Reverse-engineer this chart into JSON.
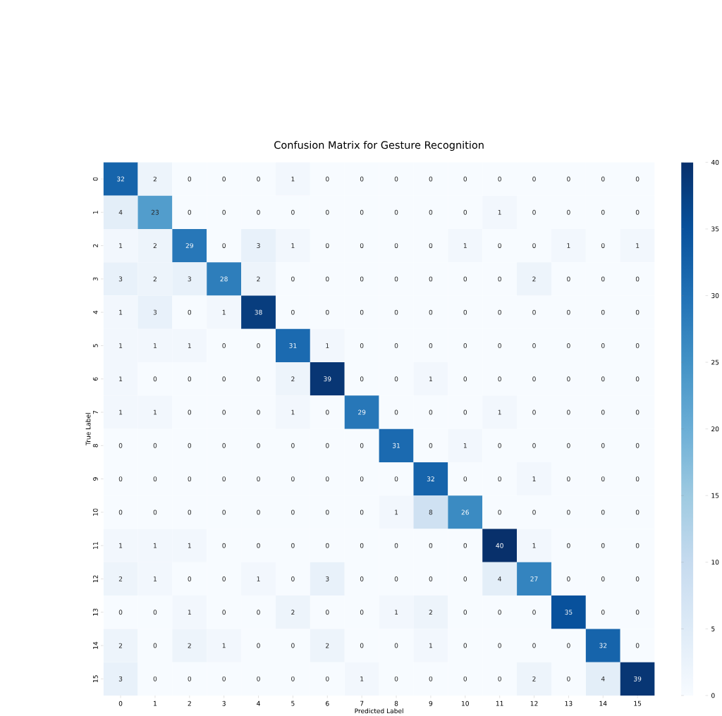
{
  "chart_data": {
    "type": "heatmap",
    "title": "Confusion Matrix for Gesture Recognition",
    "xlabel": "Predicted Label",
    "ylabel": "True Label",
    "categories": [
      "0",
      "1",
      "2",
      "3",
      "4",
      "5",
      "6",
      "7",
      "8",
      "9",
      "10",
      "11",
      "12",
      "13",
      "14",
      "15"
    ],
    "y_categories": [
      "0",
      "1",
      "2",
      "3",
      "4",
      "5",
      "6",
      "7",
      "8",
      "9",
      "10",
      "11",
      "12",
      "13",
      "14",
      "15"
    ],
    "cells": [
      [
        32,
        2,
        0,
        0,
        0,
        1,
        0,
        0,
        0,
        0,
        0,
        0,
        0,
        0,
        0,
        0
      ],
      [
        4,
        23,
        0,
        0,
        0,
        0,
        0,
        0,
        0,
        0,
        0,
        1,
        0,
        0,
        0,
        0
      ],
      [
        1,
        2,
        29,
        0,
        3,
        1,
        0,
        0,
        0,
        0,
        1,
        0,
        0,
        1,
        0,
        1
      ],
      [
        3,
        2,
        3,
        28,
        2,
        0,
        0,
        0,
        0,
        0,
        0,
        0,
        2,
        0,
        0,
        0
      ],
      [
        1,
        3,
        0,
        1,
        38,
        0,
        0,
        0,
        0,
        0,
        0,
        0,
        0,
        0,
        0,
        0
      ],
      [
        1,
        1,
        1,
        0,
        0,
        31,
        1,
        0,
        0,
        0,
        0,
        0,
        0,
        0,
        0,
        0
      ],
      [
        1,
        0,
        0,
        0,
        0,
        2,
        39,
        0,
        0,
        1,
        0,
        0,
        0,
        0,
        0,
        0
      ],
      [
        1,
        1,
        0,
        0,
        0,
        1,
        0,
        29,
        0,
        0,
        0,
        1,
        0,
        0,
        0,
        0
      ],
      [
        0,
        0,
        0,
        0,
        0,
        0,
        0,
        0,
        31,
        0,
        1,
        0,
        0,
        0,
        0,
        0
      ],
      [
        0,
        0,
        0,
        0,
        0,
        0,
        0,
        0,
        0,
        32,
        0,
        0,
        1,
        0,
        0,
        0
      ],
      [
        0,
        0,
        0,
        0,
        0,
        0,
        0,
        0,
        1,
        8,
        26,
        0,
        0,
        0,
        0,
        0
      ],
      [
        1,
        1,
        1,
        0,
        0,
        0,
        0,
        0,
        0,
        0,
        0,
        40,
        1,
        0,
        0,
        0
      ],
      [
        2,
        1,
        0,
        0,
        1,
        0,
        3,
        0,
        0,
        0,
        0,
        4,
        27,
        0,
        0,
        0
      ],
      [
        0,
        0,
        1,
        0,
        0,
        2,
        0,
        0,
        1,
        2,
        0,
        0,
        0,
        35,
        0,
        0
      ],
      [
        2,
        0,
        2,
        1,
        0,
        0,
        2,
        0,
        0,
        1,
        0,
        0,
        0,
        0,
        32,
        0
      ],
      [
        3,
        0,
        0,
        0,
        0,
        0,
        0,
        1,
        0,
        0,
        0,
        0,
        2,
        0,
        4,
        39
      ]
    ],
    "clim": [
      0,
      40
    ],
    "cticks": [
      0,
      5,
      10,
      15,
      20,
      25,
      30,
      35,
      40
    ],
    "data_labels": true,
    "grid": false
  }
}
